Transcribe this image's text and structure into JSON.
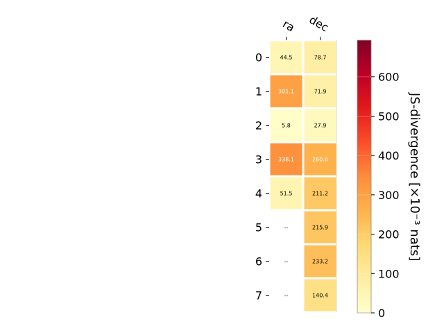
{
  "chart_data": {
    "type": "heatmap",
    "columns": [
      "ra",
      "dec"
    ],
    "rows": [
      "0",
      "1",
      "2",
      "3",
      "4",
      "5",
      "6",
      "7"
    ],
    "values": [
      [
        44.5,
        78.7
      ],
      [
        301.1,
        71.9
      ],
      [
        5.8,
        27.9
      ],
      [
        338.1,
        260.6
      ],
      [
        51.5,
        211.2
      ],
      [
        null,
        215.9
      ],
      [
        null,
        233.2
      ],
      [
        null,
        140.4
      ]
    ],
    "cell_labels": [
      [
        "44.5",
        "78.7"
      ],
      [
        "301.1",
        "71.9"
      ],
      [
        "5.8",
        "27.9"
      ],
      [
        "338.1",
        "260.6"
      ],
      [
        "51.5",
        "211.2"
      ],
      [
        "--",
        "215.9"
      ],
      [
        "--",
        "233.2"
      ],
      [
        "--",
        "140.4"
      ]
    ],
    "colorbar": {
      "label": "JS-divergence [×10⁻³ nats]",
      "range": [
        0,
        693
      ],
      "ticks": [
        0,
        100,
        200,
        300,
        400,
        500,
        600
      ],
      "tick_labels": [
        "0",
        "100",
        "200",
        "300",
        "400",
        "500",
        "600"
      ],
      "colormap": "YlOrRd"
    }
  }
}
